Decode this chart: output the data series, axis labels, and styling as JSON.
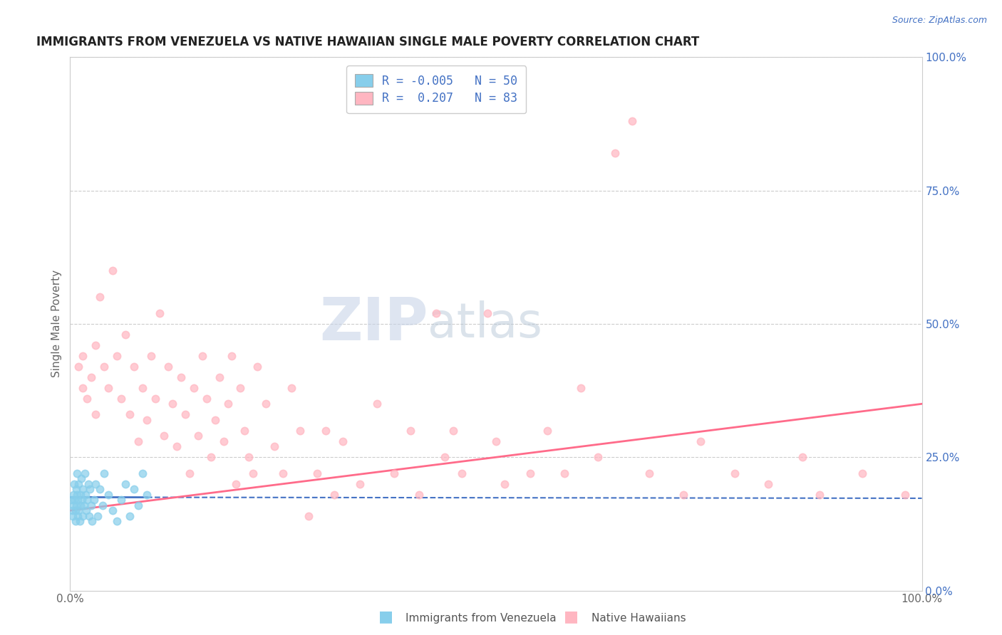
{
  "title": "IMMIGRANTS FROM VENEZUELA VS NATIVE HAWAIIAN SINGLE MALE POVERTY CORRELATION CHART",
  "source": "Source: ZipAtlas.com",
  "ylabel": "Single Male Poverty",
  "r_venezuela": -0.005,
  "n_venezuela": 50,
  "r_hawaiian": 0.207,
  "n_hawaiian": 83,
  "color_venezuela": "#87CEEB",
  "color_hawaiian": "#FFB6C1",
  "line_venezuela_solid": "#4472C4",
  "line_venezuela_dash": "#4472C4",
  "line_hawaiian": "#FF6B8A",
  "watermark_zip": "ZIP",
  "watermark_atlas": "atlas",
  "background_color": "#ffffff",
  "grid_color": "#cccccc",
  "xlim": [
    0.0,
    1.0
  ],
  "ylim": [
    0.0,
    1.0
  ],
  "right_yticks": [
    0.0,
    0.25,
    0.5,
    0.75,
    1.0
  ],
  "right_ytick_labels": [
    "0.0%",
    "25.0%",
    "50.0%",
    "75.0%",
    "100.0%"
  ],
  "xtick_labels": [
    "0.0%",
    "100.0%"
  ],
  "venezuela_points": [
    [
      0.002,
      0.17
    ],
    [
      0.003,
      0.15
    ],
    [
      0.003,
      0.14
    ],
    [
      0.004,
      0.18
    ],
    [
      0.004,
      0.16
    ],
    [
      0.005,
      0.2
    ],
    [
      0.005,
      0.17
    ],
    [
      0.006,
      0.15
    ],
    [
      0.006,
      0.13
    ],
    [
      0.007,
      0.19
    ],
    [
      0.007,
      0.16
    ],
    [
      0.008,
      0.22
    ],
    [
      0.008,
      0.18
    ],
    [
      0.009,
      0.14
    ],
    [
      0.009,
      0.17
    ],
    [
      0.01,
      0.2
    ],
    [
      0.01,
      0.15
    ],
    [
      0.011,
      0.13
    ],
    [
      0.012,
      0.18
    ],
    [
      0.012,
      0.16
    ],
    [
      0.013,
      0.21
    ],
    [
      0.014,
      0.17
    ],
    [
      0.015,
      0.14
    ],
    [
      0.015,
      0.19
    ],
    [
      0.016,
      0.16
    ],
    [
      0.017,
      0.22
    ],
    [
      0.018,
      0.18
    ],
    [
      0.019,
      0.15
    ],
    [
      0.02,
      0.17
    ],
    [
      0.021,
      0.2
    ],
    [
      0.022,
      0.14
    ],
    [
      0.023,
      0.19
    ],
    [
      0.025,
      0.16
    ],
    [
      0.026,
      0.13
    ],
    [
      0.028,
      0.17
    ],
    [
      0.03,
      0.2
    ],
    [
      0.032,
      0.14
    ],
    [
      0.035,
      0.19
    ],
    [
      0.038,
      0.16
    ],
    [
      0.04,
      0.22
    ],
    [
      0.045,
      0.18
    ],
    [
      0.05,
      0.15
    ],
    [
      0.055,
      0.13
    ],
    [
      0.06,
      0.17
    ],
    [
      0.065,
      0.2
    ],
    [
      0.07,
      0.14
    ],
    [
      0.075,
      0.19
    ],
    [
      0.08,
      0.16
    ],
    [
      0.085,
      0.22
    ],
    [
      0.09,
      0.18
    ]
  ],
  "hawaiian_points": [
    [
      0.01,
      0.42
    ],
    [
      0.015,
      0.38
    ],
    [
      0.015,
      0.44
    ],
    [
      0.02,
      0.36
    ],
    [
      0.025,
      0.4
    ],
    [
      0.03,
      0.33
    ],
    [
      0.03,
      0.46
    ],
    [
      0.035,
      0.55
    ],
    [
      0.04,
      0.42
    ],
    [
      0.045,
      0.38
    ],
    [
      0.05,
      0.6
    ],
    [
      0.055,
      0.44
    ],
    [
      0.06,
      0.36
    ],
    [
      0.065,
      0.48
    ],
    [
      0.07,
      0.33
    ],
    [
      0.075,
      0.42
    ],
    [
      0.08,
      0.28
    ],
    [
      0.085,
      0.38
    ],
    [
      0.09,
      0.32
    ],
    [
      0.095,
      0.44
    ],
    [
      0.1,
      0.36
    ],
    [
      0.105,
      0.52
    ],
    [
      0.11,
      0.29
    ],
    [
      0.115,
      0.42
    ],
    [
      0.12,
      0.35
    ],
    [
      0.125,
      0.27
    ],
    [
      0.13,
      0.4
    ],
    [
      0.135,
      0.33
    ],
    [
      0.14,
      0.22
    ],
    [
      0.145,
      0.38
    ],
    [
      0.15,
      0.29
    ],
    [
      0.155,
      0.44
    ],
    [
      0.16,
      0.36
    ],
    [
      0.165,
      0.25
    ],
    [
      0.17,
      0.32
    ],
    [
      0.175,
      0.4
    ],
    [
      0.18,
      0.28
    ],
    [
      0.185,
      0.35
    ],
    [
      0.19,
      0.44
    ],
    [
      0.195,
      0.2
    ],
    [
      0.2,
      0.38
    ],
    [
      0.205,
      0.3
    ],
    [
      0.21,
      0.25
    ],
    [
      0.215,
      0.22
    ],
    [
      0.22,
      0.42
    ],
    [
      0.23,
      0.35
    ],
    [
      0.24,
      0.27
    ],
    [
      0.25,
      0.22
    ],
    [
      0.26,
      0.38
    ],
    [
      0.27,
      0.3
    ],
    [
      0.28,
      0.14
    ],
    [
      0.29,
      0.22
    ],
    [
      0.3,
      0.3
    ],
    [
      0.31,
      0.18
    ],
    [
      0.32,
      0.28
    ],
    [
      0.34,
      0.2
    ],
    [
      0.36,
      0.35
    ],
    [
      0.38,
      0.22
    ],
    [
      0.4,
      0.3
    ],
    [
      0.41,
      0.18
    ],
    [
      0.43,
      0.52
    ],
    [
      0.44,
      0.25
    ],
    [
      0.45,
      0.3
    ],
    [
      0.46,
      0.22
    ],
    [
      0.49,
      0.52
    ],
    [
      0.5,
      0.28
    ],
    [
      0.51,
      0.2
    ],
    [
      0.54,
      0.22
    ],
    [
      0.56,
      0.3
    ],
    [
      0.58,
      0.22
    ],
    [
      0.6,
      0.38
    ],
    [
      0.62,
      0.25
    ],
    [
      0.64,
      0.82
    ],
    [
      0.66,
      0.88
    ],
    [
      0.68,
      0.22
    ],
    [
      0.72,
      0.18
    ],
    [
      0.74,
      0.28
    ],
    [
      0.78,
      0.22
    ],
    [
      0.82,
      0.2
    ],
    [
      0.86,
      0.25
    ],
    [
      0.88,
      0.18
    ],
    [
      0.93,
      0.22
    ],
    [
      0.98,
      0.18
    ]
  ]
}
